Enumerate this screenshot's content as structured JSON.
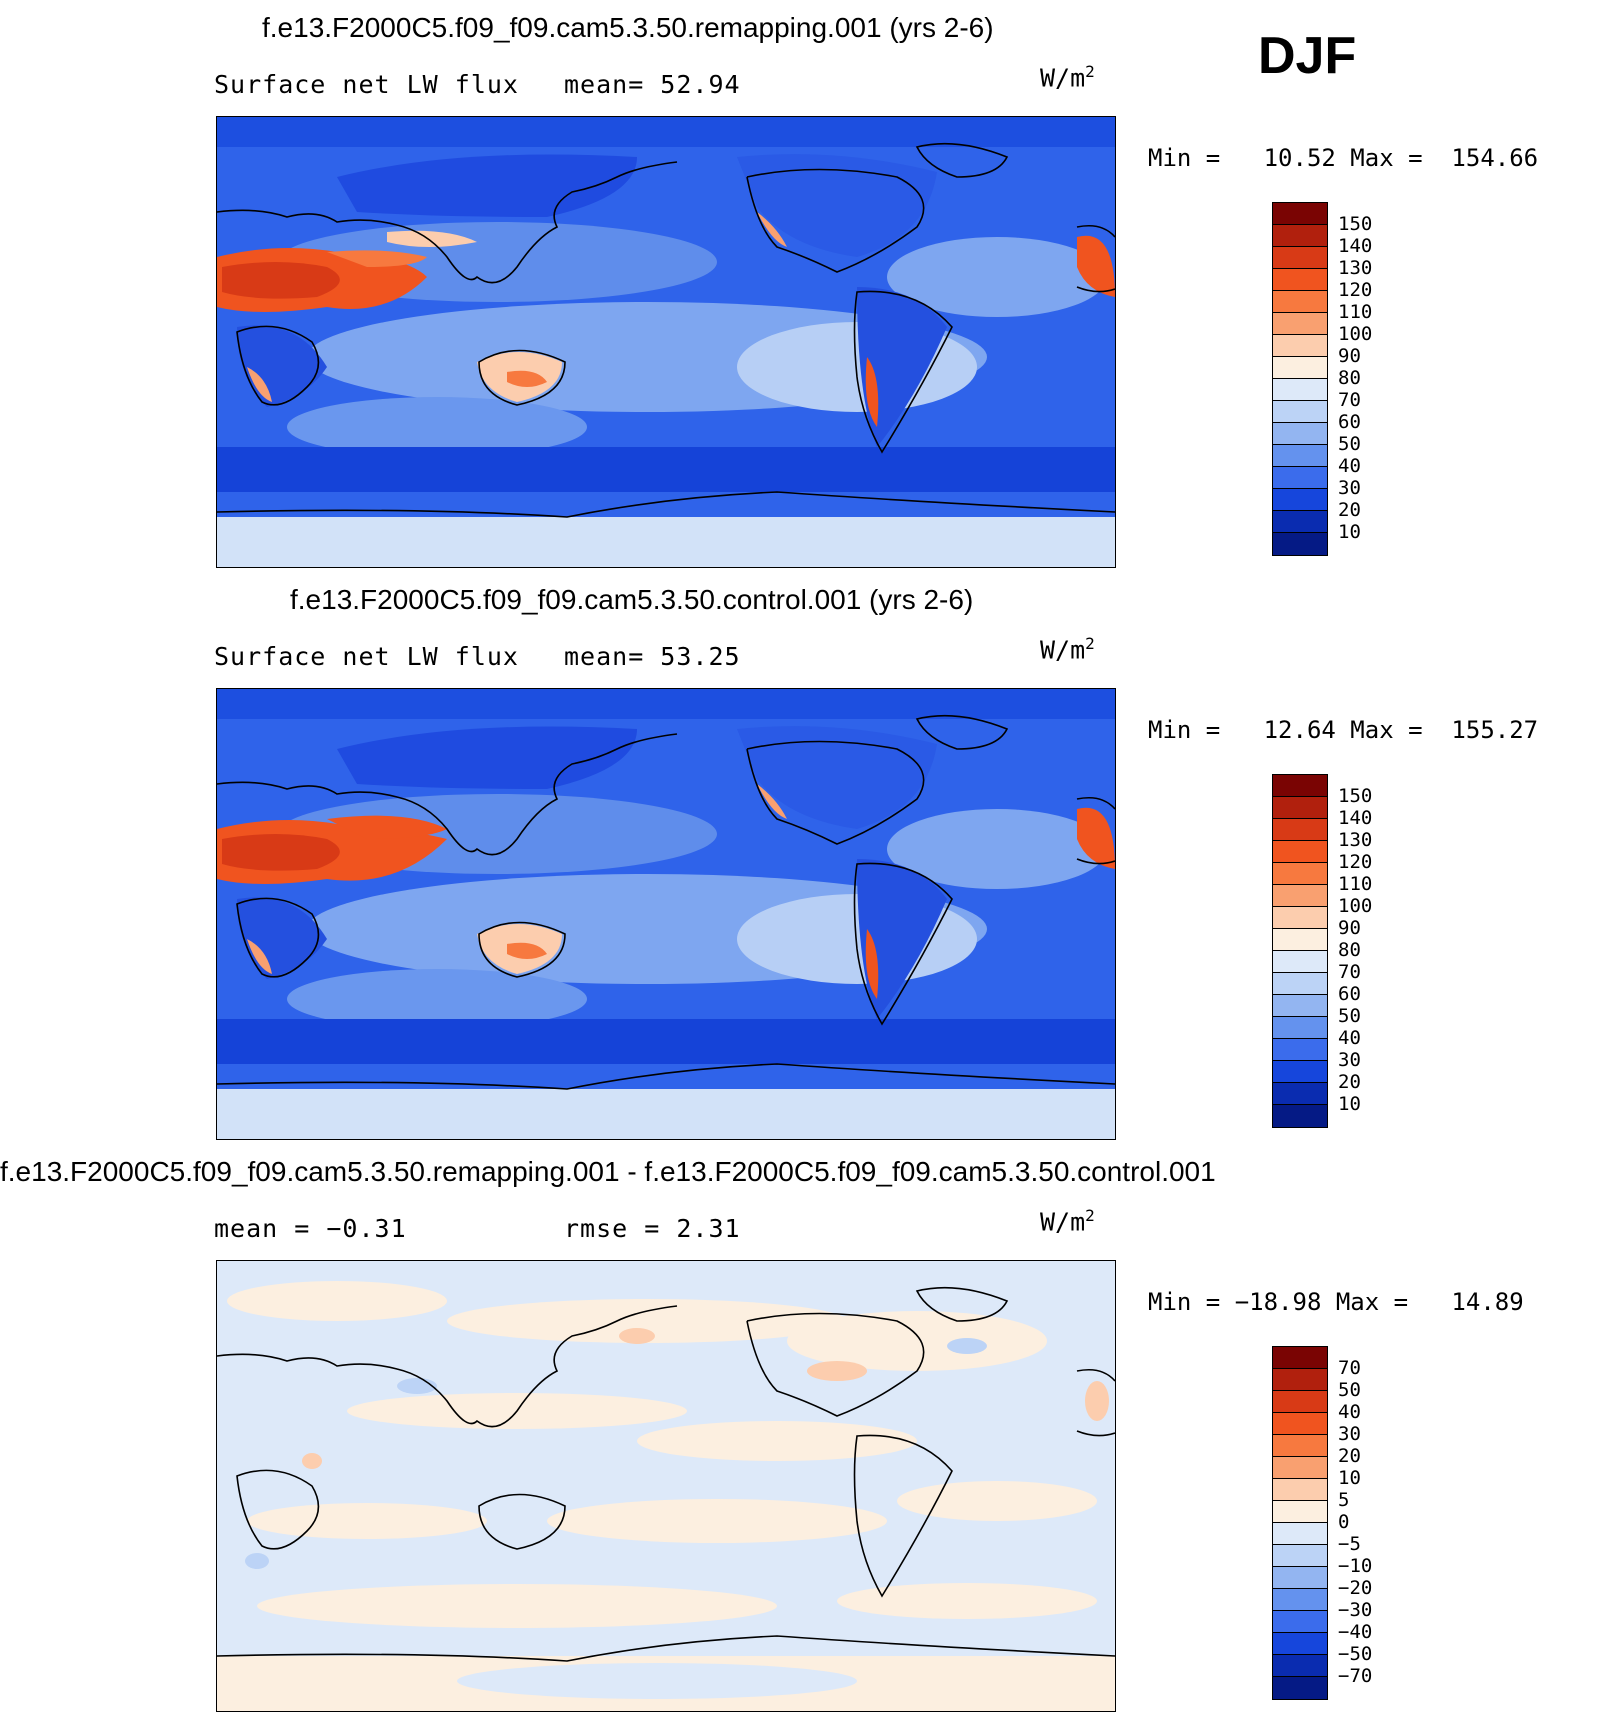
{
  "season": "DJF",
  "panels": [
    {
      "title": "f.e13.F2000C5.f09_f09.cam5.3.50.remapping.001 (yrs 2-6)",
      "left_label": "Surface net LW flux",
      "right_label": "mean=  52.94",
      "units": "W/m",
      "units_exp": "2",
      "minmax": "Min =   10.52 Max =  154.66",
      "colorbar_labels": [
        "150",
        "140",
        "130",
        "120",
        "110",
        "100",
        "90",
        "80",
        "70",
        "60",
        "50",
        "40",
        "30",
        "20",
        "10"
      ],
      "colors": [
        "#7a0403",
        "#b1200d",
        "#d83a16",
        "#f0541f",
        "#f7793f",
        "#f9a070",
        "#fccdae",
        "#fcefe0",
        "#dde9f9",
        "#bcd3f6",
        "#93b5f1",
        "#6492ee",
        "#3b6cec",
        "#1646dc",
        "#0a2cb0",
        "#051a85"
      ]
    },
    {
      "title": "f.e13.F2000C5.f09_f09.cam5.3.50.control.001 (yrs 2-6)",
      "left_label": "Surface net LW flux",
      "right_label": "mean=  53.25",
      "units": "W/m",
      "units_exp": "2",
      "minmax": "Min =   12.64 Max =  155.27",
      "colorbar_labels": [
        "150",
        "140",
        "130",
        "120",
        "110",
        "100",
        "90",
        "80",
        "70",
        "60",
        "50",
        "40",
        "30",
        "20",
        "10"
      ],
      "colors": [
        "#7a0403",
        "#b1200d",
        "#d83a16",
        "#f0541f",
        "#f7793f",
        "#f9a070",
        "#fccdae",
        "#fcefe0",
        "#dde9f9",
        "#bcd3f6",
        "#93b5f1",
        "#6492ee",
        "#3b6cec",
        "#1646dc",
        "#0a2cb0",
        "#051a85"
      ]
    },
    {
      "title": "f.e13.F2000C5.f09_f09.cam5.3.50.remapping.001 - f.e13.F2000C5.f09_f09.cam5.3.50.control.001",
      "left_label": "mean =   −0.31",
      "right_label": "rmse =    2.31",
      "units": "W/m",
      "units_exp": "2",
      "minmax": "Min = −18.98 Max =   14.89",
      "colorbar_labels": [
        "70",
        "50",
        "40",
        "30",
        "20",
        "10",
        "5",
        "0",
        "−5",
        "−10",
        "−20",
        "−30",
        "−40",
        "−50",
        "−70"
      ],
      "colors": [
        "#7a0403",
        "#b1200d",
        "#d83a16",
        "#f0541f",
        "#f7793f",
        "#f9a070",
        "#fccdae",
        "#fcefe0",
        "#dde9f9",
        "#bcd3f6",
        "#93b5f1",
        "#6492ee",
        "#3b6cec",
        "#1646dc",
        "#0a2cb0",
        "#051a85"
      ]
    }
  ]
}
